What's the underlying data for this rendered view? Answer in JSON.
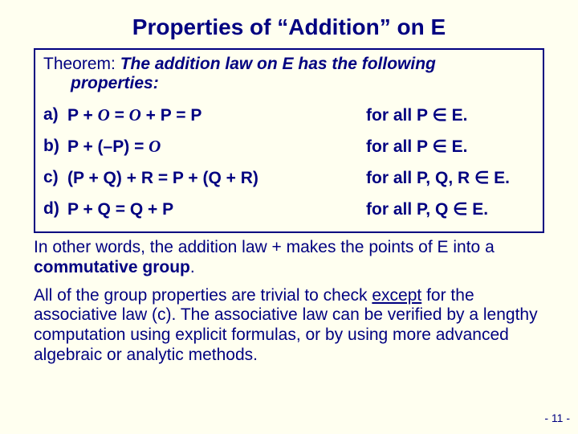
{
  "colors": {
    "background": "#fffff0",
    "text": "#000080",
    "border": "#000080"
  },
  "typography": {
    "family": "Arial, Helvetica, sans-serif",
    "title_fontsize": 28,
    "body_fontsize": 21,
    "pagenum_fontsize": 14
  },
  "title": "Properties of “Addition” on E",
  "theorem": {
    "label": "Theorem:",
    "statement_line1": " The addition law on E has the following",
    "statement_line2": "properties:",
    "items": [
      {
        "label": "a)",
        "eq_pre": "P + ",
        "O1": "O",
        "eq_mid": " = ",
        "O2": "O",
        "eq_post": " + P = P",
        "cond": "for all P ∈ E."
      },
      {
        "label": "b)",
        "eq_pre": "P + (–P) = ",
        "O1": "O",
        "eq_mid": "",
        "O2": "",
        "eq_post": "",
        "cond": "for all P ∈ E."
      },
      {
        "label": "c)",
        "eq_pre": "(P + Q) + R = P + (Q + R)",
        "O1": "",
        "eq_mid": "",
        "O2": "",
        "eq_post": "",
        "cond": "for all P, Q, R ∈ E."
      },
      {
        "label": "d)",
        "eq_pre": "P + Q = Q + P",
        "O1": "",
        "eq_mid": "",
        "O2": "",
        "eq_post": "",
        "cond": "for all P, Q ∈ E."
      }
    ]
  },
  "para1_a": "In other words, the addition law + makes the points of E into a ",
  "para1_b": "commutative group",
  "para1_c": ".",
  "para2_a": "All of the group properties are trivial to check ",
  "para2_u": "except",
  "para2_b": " for the associative law (c). The associative law can be verified by a lengthy computation using explicit formulas, or by using more advanced algebraic or analytic methods.",
  "page_number": "- 11 -"
}
